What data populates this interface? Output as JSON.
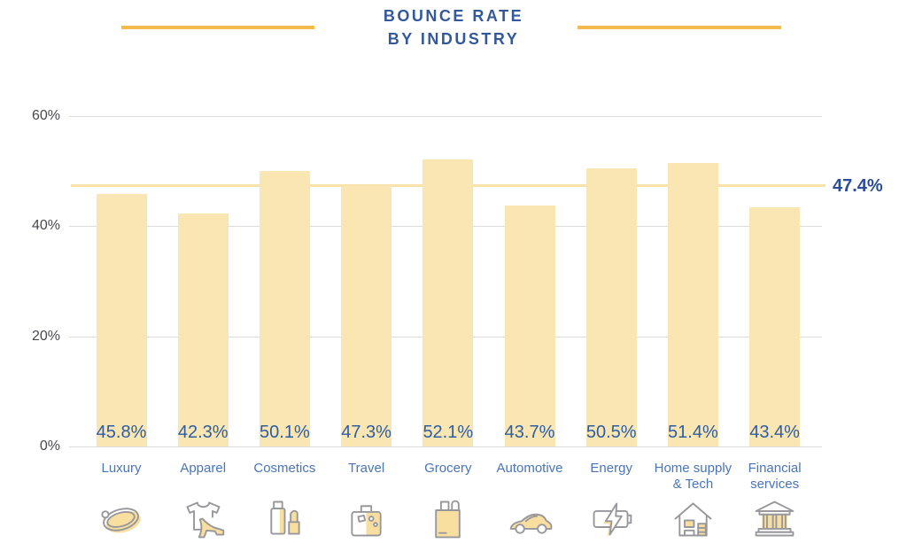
{
  "title": {
    "line1": "BOUNCE RATE",
    "line2": "BY INDUSTRY"
  },
  "chart_data": {
    "type": "bar",
    "title": "BOUNCE RATE BY INDUSTRY",
    "categories": [
      "Luxury",
      "Apparel",
      "Cosmetics",
      "Travel",
      "Grocery",
      "Automotive",
      "Energy",
      "Home supply\n& Tech",
      "Financial\nservices"
    ],
    "values": [
      45.8,
      42.3,
      50.1,
      47.3,
      52.1,
      43.7,
      50.5,
      51.4,
      43.4
    ],
    "value_labels": [
      "45.8%",
      "42.3%",
      "50.1%",
      "47.3%",
      "52.1%",
      "43.7%",
      "50.5%",
      "51.4%",
      "43.4%"
    ],
    "icons": [
      "ring-icon",
      "apparel-icon",
      "cosmetics-icon",
      "suitcase-icon",
      "shopping-bag-icon",
      "car-icon",
      "battery-icon",
      "home-tech-icon",
      "bank-icon"
    ],
    "yticks": [
      0,
      20,
      40,
      60
    ],
    "ytick_labels": [
      "0%",
      "20%",
      "40%",
      "60%"
    ],
    "ylim": [
      0,
      60
    ],
    "xlabel": "",
    "ylabel": "",
    "grid": "horizontal",
    "legend": "none",
    "reference_line": {
      "value": 47.4,
      "label": "47.4%"
    }
  },
  "colors": {
    "bar_fill": "#F9E6B2",
    "reference_line": "#F8E2AB",
    "decorative_line": "#F6BA4B",
    "title_text": "#34599B",
    "value_text": "#2D5DA4",
    "reference_text": "#2B4C96",
    "category_text": "#4A74B8",
    "axis_text": "#48484E",
    "gridline": "#DCDCDC",
    "icon_stroke": "#98989C",
    "icon_fill": "#F8DFA0"
  }
}
